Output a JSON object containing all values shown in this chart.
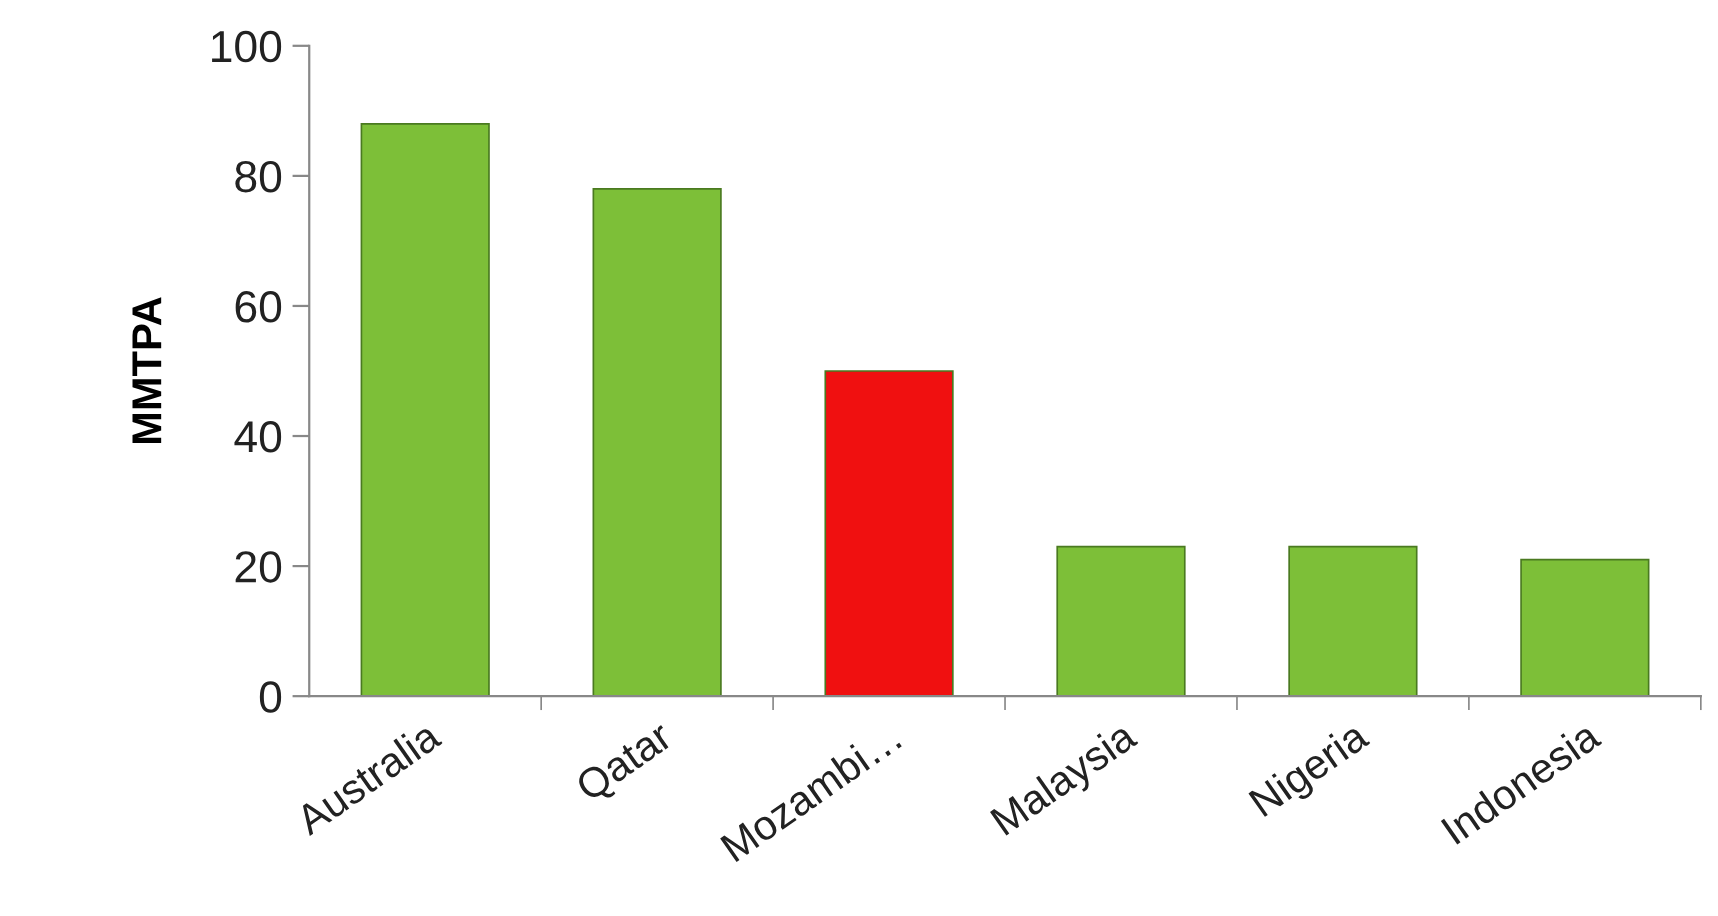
{
  "chart_data": {
    "type": "bar",
    "ylabel": "MMTPA",
    "categories": [
      "Australia",
      "Qatar",
      "Mozambi…",
      "Malaysia",
      "Nigeria",
      "Indonesia"
    ],
    "values": [
      88,
      78,
      50,
      23,
      23,
      21
    ],
    "colors": [
      "#7dbf38",
      "#7dbf38",
      "#f01010",
      "#7dbf38",
      "#7dbf38",
      "#7dbf38"
    ],
    "ylim": [
      0,
      100
    ],
    "yticks": [
      0,
      20,
      40,
      60,
      80,
      100
    ],
    "grid": false,
    "legend": false
  }
}
